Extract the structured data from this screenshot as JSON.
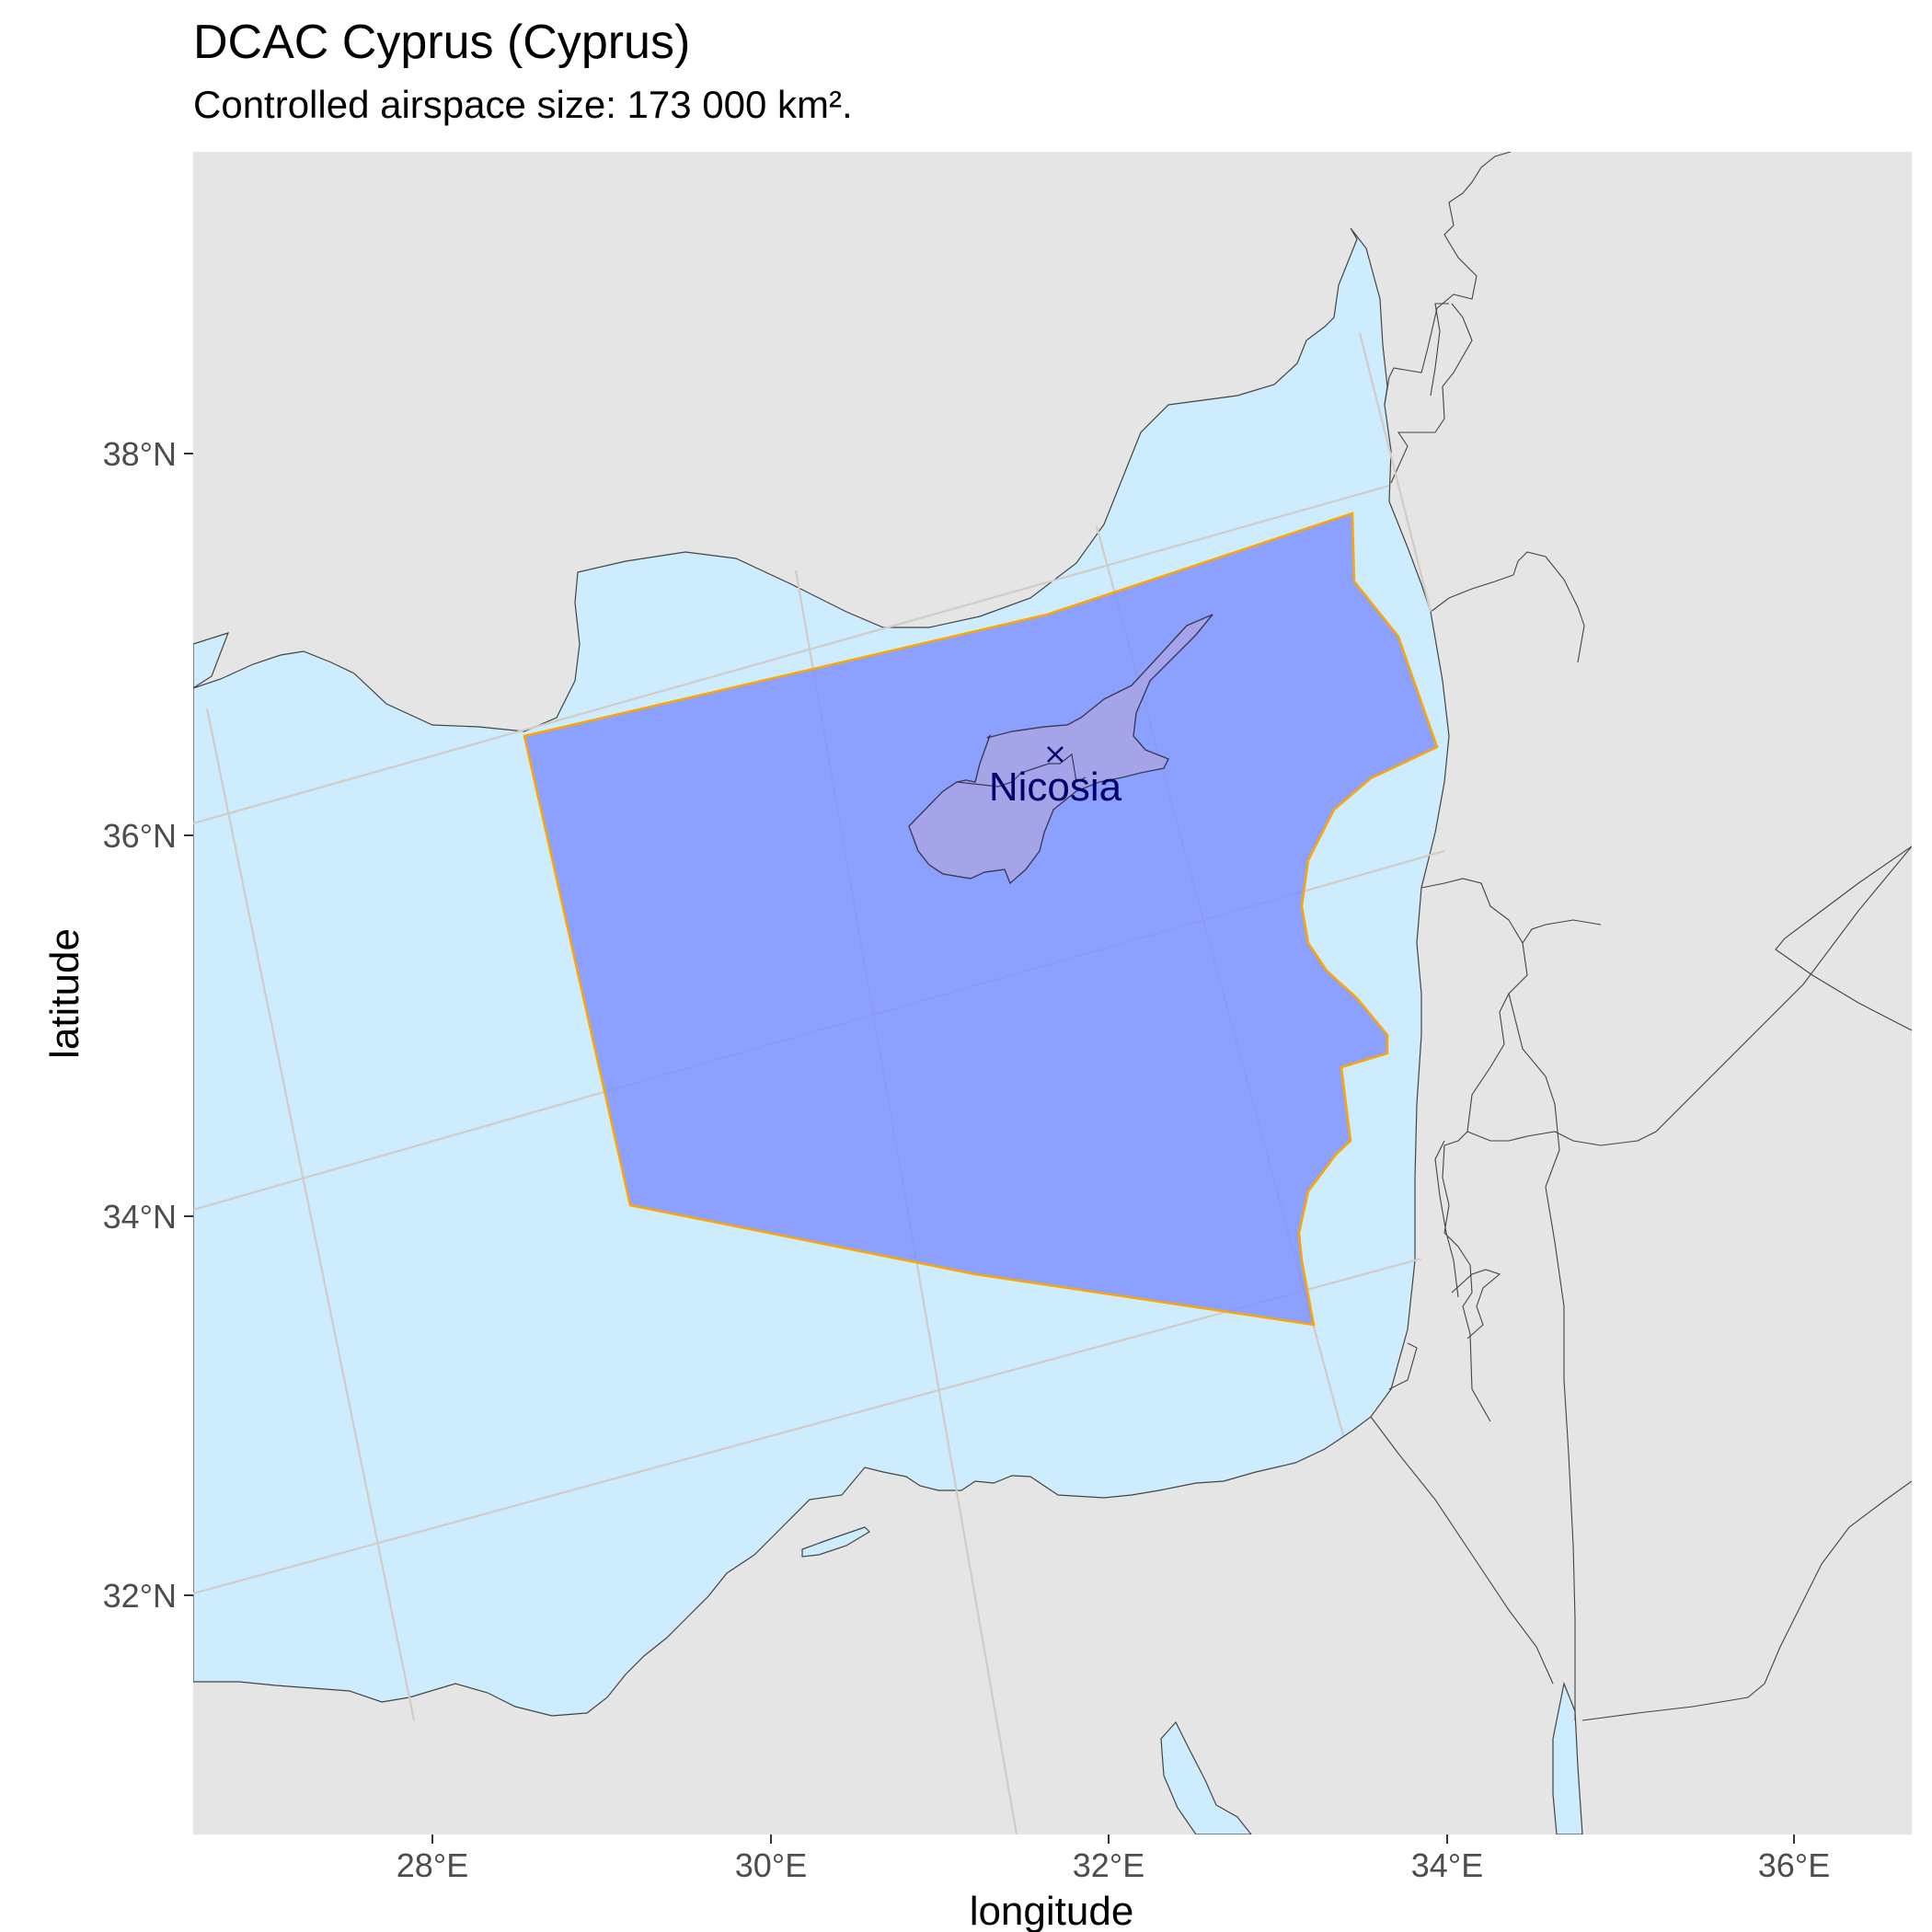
{
  "chart": {
    "title": "DCAC Cyprus (Cyprus)",
    "subtitle": "Controlled airspace size: 173 000 km².",
    "xlabel": "longitude",
    "ylabel": "latitude"
  },
  "axes": {
    "x_ticks": [
      "28°E",
      "30°E",
      "32°E",
      "34°E",
      "36°E"
    ],
    "y_ticks": [
      "38°N",
      "36°N",
      "34°N",
      "32°N"
    ]
  },
  "map": {
    "airspace_name": "DCAC Cyprus",
    "city": "Nicosia",
    "colors": {
      "land": "#e5e5e5",
      "sea": "#cdecfd",
      "border": "#444444",
      "graticule": "#d3cbc5",
      "airspace_fill": "#7a8cff",
      "airspace_outline": "#ffa500",
      "city": "#00006b"
    }
  }
}
